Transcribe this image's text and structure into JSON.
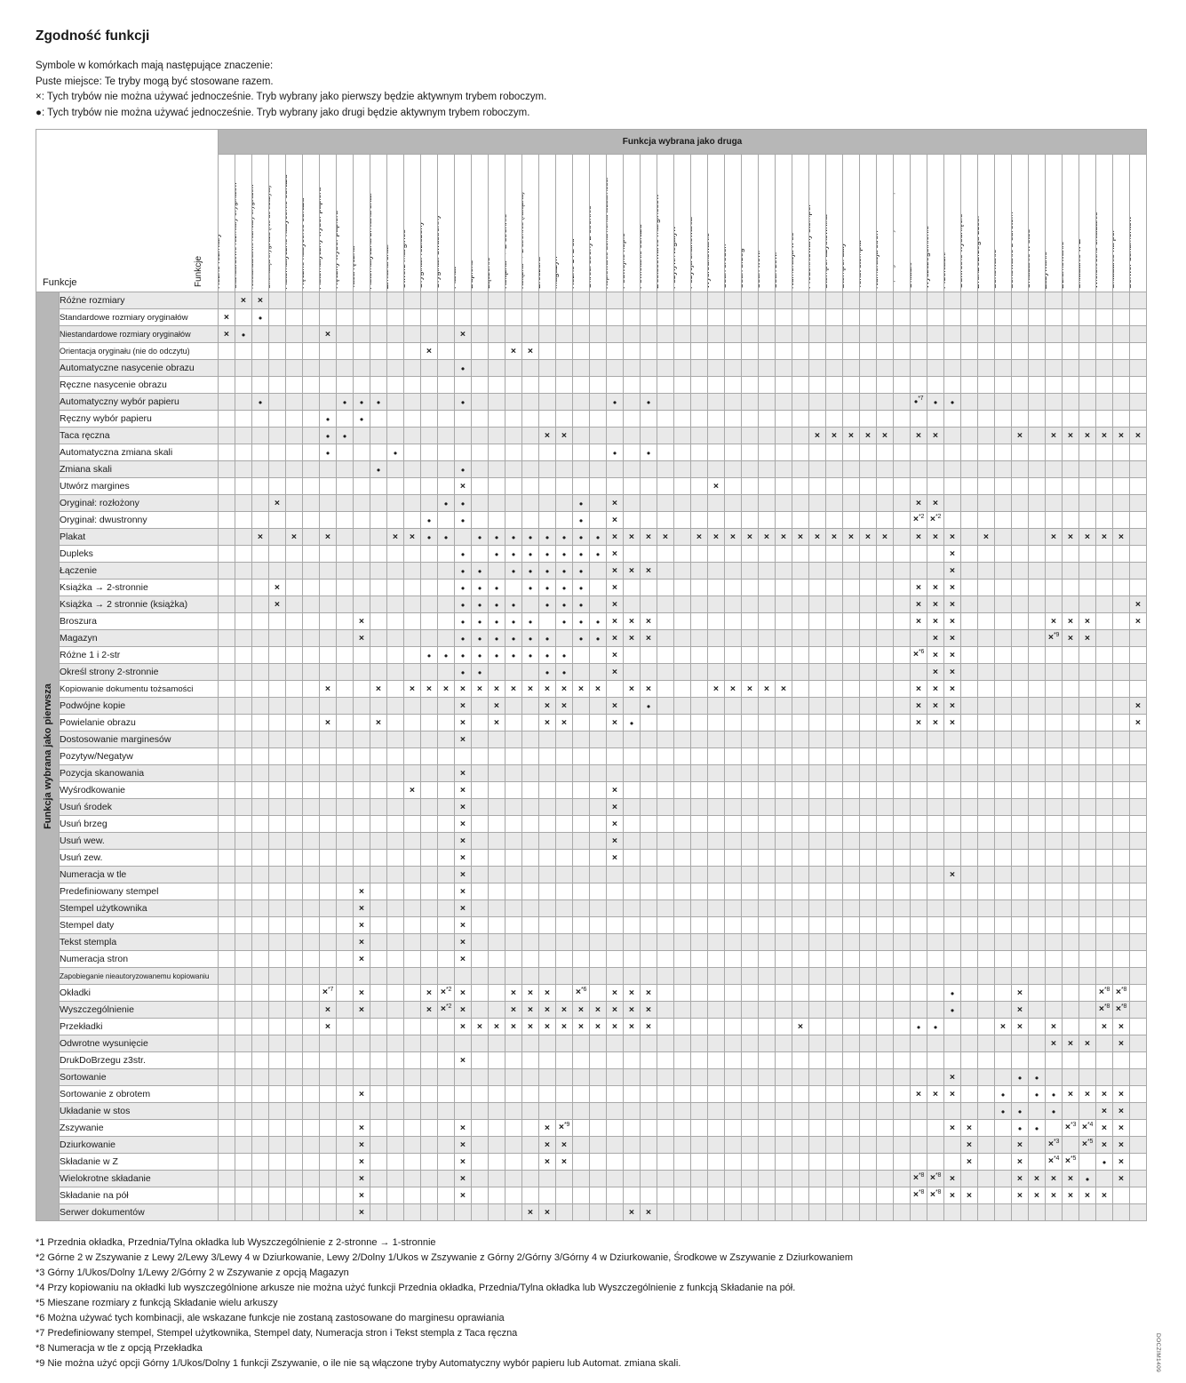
{
  "title": "Zgodność funkcji",
  "legend": [
    "Symbole w komórkach mają następujące znaczenie:",
    "Puste miejsce: Te tryby mogą być stosowane razem.",
    "×: Tych trybów nie można używać jednocześnie. Tryb wybrany jako pierwszy będzie aktywnym trybem roboczym.",
    "●: Tych trybów nie można używać jednocześnie. Tryb wybrany jako drugi będzie aktywnym trybem roboczym."
  ],
  "table": {
    "corner_label": "Funkcje",
    "corner_label_vertical": "Funkcje",
    "col_banner": "Funkcja wybrana jako druga",
    "row_banner": "Funkcja wybrana jako pierwsza",
    "symbols": {
      "x": "×",
      "d": "●"
    },
    "functions": [
      "Różne rozmiary",
      "Standardowe rozmiary oryginałów",
      "Niestandardowe rozmiary oryginałów",
      "Orientacja oryginału (nie do odczytu)",
      "Automatyczne nasycenie obrazu",
      "Ręczne nasycenie obrazu",
      "Automatyczny wybór papieru",
      "Ręczny wybór papieru",
      "Taca ręczna",
      "Automatyczna zmiana skali",
      "Zmiana skali",
      "Utwórz margines",
      "Oryginał: rozłożony",
      "Oryginał: dwustronny",
      "Plakat",
      "Dupleks",
      "Łączenie",
      "Książka → 2-stronnie",
      "Książka → 2 stronnie (książka)",
      "Broszura",
      "Magazyn",
      "Różne 1 i 2-str",
      "Określ strony 2-stronnie",
      "Kopiowanie dokumentu tożsamości",
      "Podwójne kopie",
      "Powielanie obrazu",
      "Dostosowanie marginesów",
      "Pozytyw/Negatyw",
      "Pozycja skanowania",
      "Wyśrodkowanie",
      "Usuń środek",
      "Usuń brzeg",
      "Usuń wew.",
      "Usuń zew.",
      "Numeracja w tle",
      "Predefiniowany stempel",
      "Stempel użytkownika",
      "Stempel daty",
      "Tekst stempla",
      "Numeracja stron",
      "Zapobieganie nieautoryzowanemu kopiowaniu",
      "Okładki",
      "Wyszczególnienie",
      "Przekładki",
      "Odwrotne wysunięcie",
      "DrukDoBrzegu z3str.",
      "Sortowanie",
      "Sortowanie z obrotem",
      "Układanie w stos",
      "Zszywanie",
      "Dziurkowanie",
      "Składanie w Z",
      "Wielokrotne składanie",
      "Składanie na pół",
      "Serwer dokumentów"
    ],
    "cells": {
      "1": {
        "2": "x",
        "3": "x"
      },
      "2": {
        "1": "x",
        "3": "d"
      },
      "3": {
        "1": "x",
        "2": "d",
        "7": "x",
        "15": "x"
      },
      "4": {
        "13": "x",
        "18": "x",
        "19": "x"
      },
      "5": {
        "15": "d"
      },
      "6": {},
      "7": {
        "3": "d",
        "8": "d",
        "9": "d",
        "10": "d",
        "15": "d",
        "24": "d",
        "26": "d",
        "42": "d*7",
        "43": "d",
        "44": "d"
      },
      "8": {
        "7": "d",
        "9": "d"
      },
      "9": {
        "7": "d",
        "8": "d",
        "20": "x",
        "21": "x",
        "36": "x",
        "37": "x",
        "38": "x",
        "39": "x",
        "40": "x",
        "42": "x",
        "43": "x",
        "48": "x",
        "50": "x",
        "51": "x",
        "52": "x",
        "53": "x",
        "54": "x",
        "55": "x"
      },
      "10": {
        "7": "d",
        "11": "d",
        "24": "d",
        "26": "d"
      },
      "11": {
        "10": "d",
        "15": "d"
      },
      "12": {
        "15": "x",
        "30": "x"
      },
      "13": {
        "4": "x",
        "14": "d",
        "15": "d",
        "22": "d",
        "24": "x",
        "42": "x",
        "43": "x"
      },
      "14": {
        "13": "d",
        "15": "d",
        "22": "d",
        "24": "x",
        "42": "x*2",
        "43": "x*2"
      },
      "15": {
        "3": "x",
        "5": "x",
        "7": "x",
        "11": "x",
        "12": "x",
        "13": "d",
        "14": "d",
        "16": "d",
        "17": "d",
        "18": "d",
        "19": "d",
        "20": "d",
        "21": "d",
        "22": "d",
        "23": "d",
        "24": "x",
        "25": "x",
        "26": "x",
        "27": "x",
        "29": "x",
        "30": "x",
        "31": "x",
        "32": "x",
        "33": "x",
        "34": "x",
        "35": "x",
        "36": "x",
        "37": "x",
        "38": "x",
        "39": "x",
        "40": "x",
        "42": "x",
        "43": "x",
        "44": "x",
        "46": "x",
        "50": "x",
        "51": "x",
        "52": "x",
        "53": "x",
        "54": "x"
      },
      "16": {
        "15": "d",
        "17": "d",
        "18": "d",
        "19": "d",
        "20": "d",
        "21": "d",
        "22": "d",
        "23": "d",
        "24": "x",
        "44": "x"
      },
      "17": {
        "15": "d",
        "16": "d",
        "18": "d",
        "19": "d",
        "20": "d",
        "21": "d",
        "22": "d",
        "24": "x",
        "25": "x",
        "26": "x",
        "44": "x"
      },
      "18": {
        "4": "x",
        "15": "d",
        "16": "d",
        "17": "d",
        "19": "d",
        "20": "d",
        "21": "d",
        "22": "d",
        "24": "x",
        "42": "x",
        "43": "x",
        "44": "x"
      },
      "19": {
        "4": "x",
        "15": "d",
        "16": "d",
        "17": "d",
        "18": "d",
        "20": "d",
        "21": "d",
        "22": "d",
        "24": "x",
        "42": "x",
        "43": "x",
        "44": "x",
        "55": "x"
      },
      "20": {
        "9": "x",
        "15": "d",
        "16": "d",
        "17": "d",
        "18": "d",
        "19": "d",
        "21": "d",
        "22": "d",
        "23": "d",
        "24": "x",
        "25": "x",
        "26": "x",
        "42": "x",
        "43": "x",
        "44": "x",
        "50": "x",
        "51": "x",
        "52": "x",
        "55": "x"
      },
      "21": {
        "9": "x",
        "15": "d",
        "16": "d",
        "17": "d",
        "18": "d",
        "19": "d",
        "20": "d",
        "22": "d",
        "23": "d",
        "24": "x",
        "25": "x",
        "26": "x",
        "43": "x",
        "44": "x",
        "50": "x*9",
        "51": "x",
        "52": "x"
      },
      "22": {
        "13": "d",
        "14": "d",
        "15": "d",
        "16": "d",
        "17": "d",
        "18": "d",
        "19": "d",
        "20": "d",
        "21": "d",
        "24": "x",
        "42": "x*6",
        "43": "x",
        "44": "x"
      },
      "23": {
        "15": "d",
        "16": "d",
        "20": "d",
        "21": "d",
        "24": "x",
        "43": "x",
        "44": "x"
      },
      "24": {
        "7": "x",
        "10": "x",
        "12": "x",
        "13": "x",
        "14": "x",
        "15": "x",
        "16": "x",
        "17": "x",
        "18": "x",
        "19": "x",
        "20": "x",
        "21": "x",
        "22": "x",
        "23": "x",
        "25": "x",
        "26": "x",
        "30": "x",
        "31": "x",
        "32": "x",
        "33": "x",
        "34": "x",
        "42": "x",
        "43": "x",
        "44": "x"
      },
      "25": {
        "15": "x",
        "17": "x",
        "20": "x",
        "21": "x",
        "24": "x",
        "26": "d",
        "42": "x",
        "43": "x",
        "44": "x",
        "55": "x"
      },
      "26": {
        "7": "x",
        "10": "x",
        "15": "x",
        "17": "x",
        "20": "x",
        "21": "x",
        "24": "x",
        "25": "d",
        "42": "x",
        "43": "x",
        "44": "x",
        "55": "x"
      },
      "27": {
        "15": "x"
      },
      "28": {},
      "29": {
        "15": "x"
      },
      "30": {
        "12": "x",
        "15": "x",
        "24": "x"
      },
      "31": {
        "15": "x",
        "24": "x"
      },
      "32": {
        "15": "x",
        "24": "x"
      },
      "33": {
        "15": "x",
        "24": "x"
      },
      "34": {
        "15": "x",
        "24": "x"
      },
      "35": {
        "15": "x",
        "44": "x"
      },
      "36": {
        "9": "x",
        "15": "x"
      },
      "37": {
        "9": "x",
        "15": "x"
      },
      "38": {
        "9": "x",
        "15": "x"
      },
      "39": {
        "9": "x",
        "15": "x"
      },
      "40": {
        "9": "x",
        "15": "x"
      },
      "41": {},
      "42": {
        "7": "x*7",
        "9": "x",
        "13": "x",
        "14": "x*2",
        "15": "x",
        "18": "x",
        "19": "x",
        "20": "x",
        "22": "x*6",
        "24": "x",
        "25": "x",
        "26": "x",
        "44": "d",
        "48": "x",
        "53": "x*8",
        "54": "x*8"
      },
      "43": {
        "7": "x",
        "9": "x",
        "13": "x",
        "14": "x*2",
        "15": "x",
        "18": "x",
        "19": "x",
        "20": "x",
        "21": "x",
        "22": "x",
        "23": "x",
        "24": "x",
        "25": "x",
        "26": "x",
        "44": "d",
        "48": "x",
        "53": "x*8",
        "54": "x*8"
      },
      "44": {
        "7": "x",
        "15": "x",
        "16": "x",
        "17": "x",
        "18": "x",
        "19": "x",
        "20": "x",
        "21": "x",
        "22": "x",
        "23": "x",
        "24": "x",
        "25": "x",
        "26": "x",
        "35": "x",
        "42": "d",
        "43": "d",
        "47": "x",
        "48": "x",
        "50": "x",
        "53": "x",
        "54": "x"
      },
      "45": {
        "50": "x",
        "51": "x",
        "52": "x",
        "54": "x"
      },
      "46": {
        "15": "x"
      },
      "47": {
        "44": "x",
        "48": "d",
        "49": "d"
      },
      "48": {
        "9": "x",
        "42": "x",
        "43": "x",
        "44": "x",
        "47": "d",
        "49": "d",
        "50": "d",
        "51": "x",
        "52": "x",
        "53": "x",
        "54": "x"
      },
      "49": {
        "47": "d",
        "48": "d",
        "50": "d",
        "53": "x",
        "54": "x"
      },
      "50": {
        "9": "x",
        "15": "x",
        "20": "x",
        "21": "x*9",
        "44": "x",
        "45": "x",
        "48": "d",
        "49": "d",
        "51": "x*3",
        "52": "x*4",
        "53": "x",
        "54": "x"
      },
      "51": {
        "9": "x",
        "15": "x",
        "20": "x",
        "21": "x",
        "45": "x",
        "48": "x",
        "50": "x*3",
        "52": "x*5",
        "53": "x",
        "54": "x"
      },
      "52": {
        "9": "x",
        "15": "x",
        "20": "x",
        "21": "x",
        "45": "x",
        "48": "x",
        "50": "x*4",
        "51": "x*5",
        "53": "d",
        "54": "x"
      },
      "53": {
        "9": "x",
        "15": "x",
        "42": "x*8",
        "43": "x*8",
        "44": "x",
        "48": "x",
        "49": "x",
        "50": "x",
        "51": "x",
        "52": "d",
        "54": "x"
      },
      "54": {
        "9": "x",
        "15": "x",
        "42": "x*8",
        "43": "x*8",
        "44": "x",
        "45": "x",
        "48": "x",
        "49": "x",
        "50": "x",
        "51": "x",
        "52": "x",
        "53": "x"
      },
      "55": {
        "9": "x",
        "19": "x",
        "20": "x",
        "25": "x",
        "26": "x"
      }
    }
  },
  "footnotes": [
    "*1 Przednia okładka, Przednia/Tylna okładka lub Wyszczególnienie z 2-stronne → 1-stronnie",
    "*2 Górne 2 w Zszywanie z Lewy 2/Lewy 3/Lewy 4 w Dziurkowanie, Lewy 2/Dolny 1/Ukos w Zszywanie z Górny 2/Górny 3/Górny 4 w Dziurkowanie, Środkowe w Zszywanie z Dziurkowaniem",
    "*3 Górny 1/Ukos/Dolny 1/Lewy 2/Górny 2 w Zszywanie z opcją Magazyn",
    "*4 Przy kopiowaniu na okładki lub wyszczególnione arkusze nie można użyć funkcji Przednia okładka, Przednia/Tylna okładka lub Wyszczególnienie z funkcją Składanie na pół.",
    "*5 Mieszane rozmiary z funkcją Składanie wielu arkuszy",
    "*6 Można używać tych kombinacji, ale wskazane funkcje nie zostaną zastosowane do marginesu oprawiania",
    "*7 Predefiniowany stempel, Stempel użytkownika, Stempel daty, Numeracja stron i Tekst stempla z Taca ręczna",
    "*8 Numeracja w tle z opcją Przekładka",
    "*9 Nie można użyć opcji Górny 1/Ukos/Dolny 1 funkcji Zszywanie, o ile nie są włączone tryby Automatyczny wybór papieru lub Automat. zmiana skali."
  ],
  "page_code": "DOCZIM1409",
  "colors": {
    "banner_gray": "#b7b7b7",
    "row_shade": "#e9e9e9",
    "grid_line": "#a8a8a8",
    "diagonal_line": "#7d7d7d",
    "text": "#1a1a1a"
  }
}
